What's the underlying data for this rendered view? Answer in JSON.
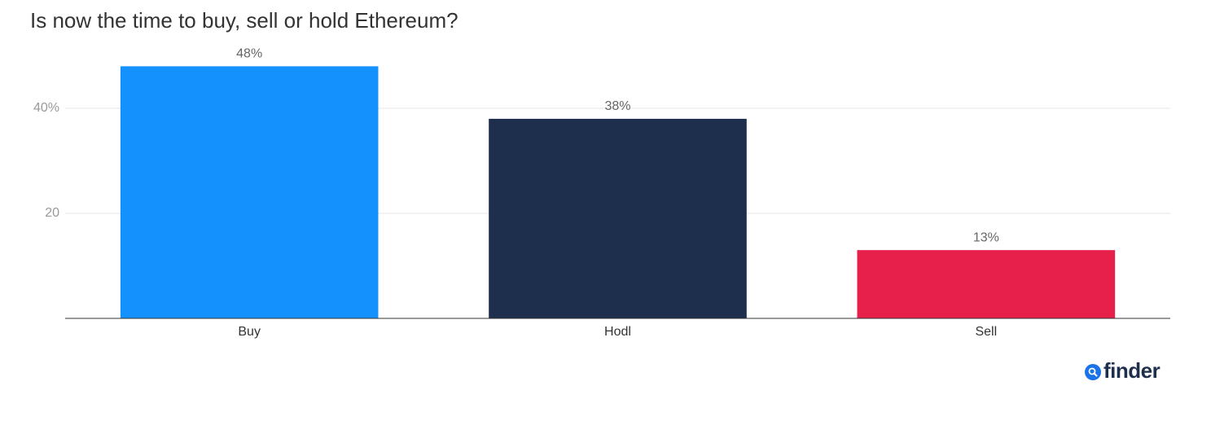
{
  "chart_data": {
    "type": "bar",
    "title": "Is now the time to buy, sell or hold Ethereum?",
    "categories": [
      "Buy",
      "Hodl",
      "Sell"
    ],
    "values": [
      48,
      38,
      13
    ],
    "value_labels": [
      "48%",
      "38%",
      "13%"
    ],
    "colors": [
      "#1591fe",
      "#1d2f4c",
      "#e61f4b"
    ],
    "ylim": [
      0,
      50
    ],
    "yticks": [
      20,
      {
        "value": 40,
        "label": "40%"
      }
    ],
    "grid": true,
    "logo": "finder"
  }
}
